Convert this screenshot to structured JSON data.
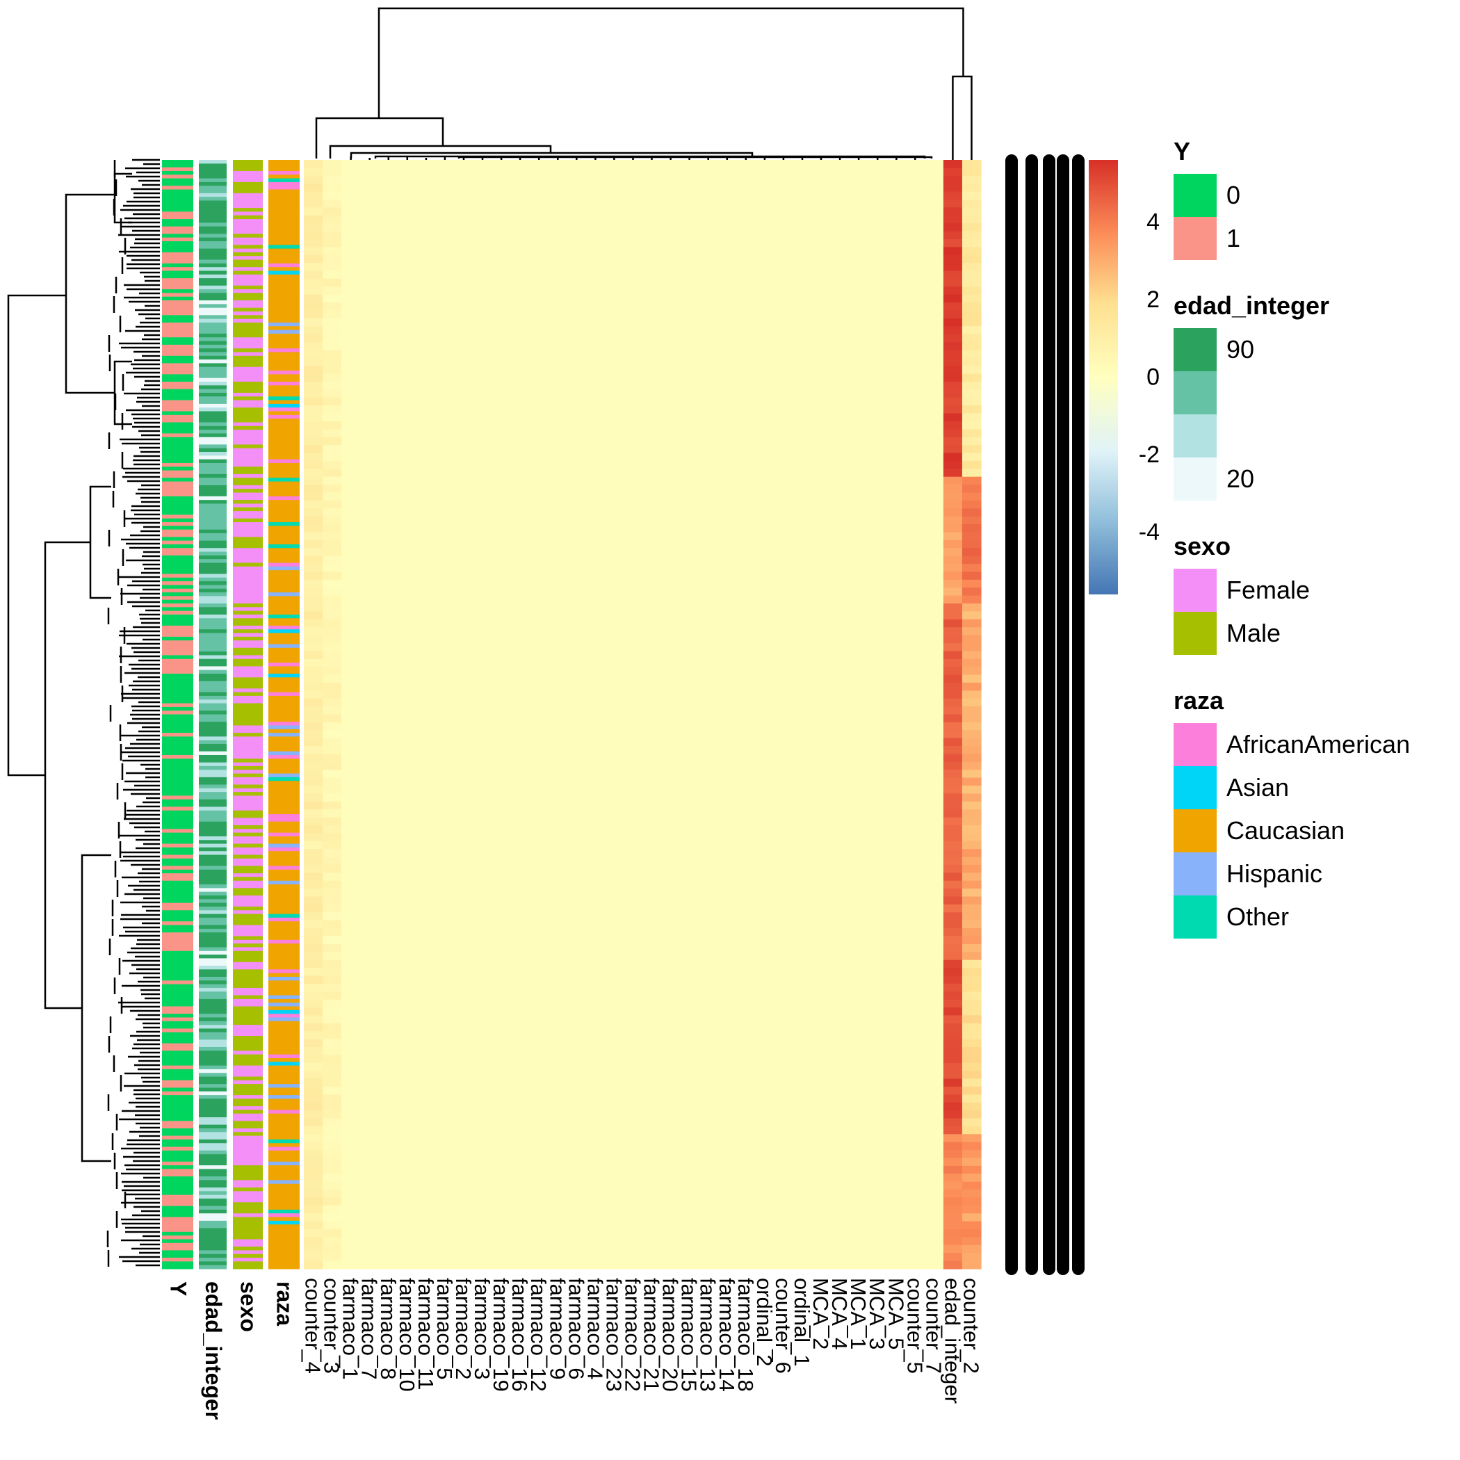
{
  "chart_data": {
    "type": "heatmap",
    "title": "",
    "colorbar": {
      "ticks": [
        "4",
        "2",
        "0",
        "-2",
        "-4"
      ],
      "tick_values": [
        4,
        2,
        0,
        -2,
        -4
      ],
      "range": [
        -5.6,
        5.6
      ],
      "colors": [
        "#4575b4",
        "#91bfdb",
        "#e0f3f8",
        "#ffffbf",
        "#fee090",
        "#fc8d59",
        "#d73027"
      ]
    },
    "columns": [
      "counter_4",
      "counter_3",
      "farmaco_1",
      "farmaco_7",
      "farmaco_8",
      "farmaco_10",
      "farmaco_11",
      "farmaco_5",
      "farmaco_2",
      "farmaco_3",
      "farmaco_19",
      "farmaco_16",
      "farmaco_12",
      "farmaco_9",
      "farmaco_6",
      "farmaco_4",
      "farmaco_23",
      "farmaco_22",
      "farmaco_21",
      "farmaco_20",
      "farmaco_15",
      "farmaco_13",
      "farmaco_14",
      "farmaco_18",
      "ordinal_2",
      "counter_6",
      "ordinal_1",
      "MCA_2",
      "MCA_4",
      "MCA_1",
      "MCA_3",
      "MCA_5",
      "counter_5",
      "counter_7",
      "edad_integer",
      "counter_2"
    ],
    "column_mean_values": [
      0.8,
      0.35,
      0.15,
      0.1,
      0.1,
      0.1,
      0.1,
      0.1,
      0.1,
      0.1,
      0.1,
      0.1,
      0.1,
      0.1,
      0.1,
      0.1,
      0.1,
      0.1,
      0.1,
      0.1,
      0.1,
      0.1,
      0.1,
      0.1,
      0.1,
      0.1,
      0.1,
      0.1,
      0.1,
      0.1,
      0.1,
      0.1,
      0.1,
      0.1,
      4.5,
      2.6
    ],
    "row_groups_edad_integer_col": [
      {
        "rows": "top",
        "value": 5.3
      },
      {
        "rows": "upper-middle",
        "value": 3.2
      },
      {
        "rows": "middle",
        "value": 4.6
      },
      {
        "rows": "lower-middle",
        "value": 5.1
      },
      {
        "rows": "bottom",
        "value": 3.8
      }
    ],
    "row_groups_counter_2_col": [
      {
        "rows": "top",
        "value": 1.2
      },
      {
        "rows": "upper-middle",
        "value": 4.2
      },
      {
        "rows": "middle",
        "value": 3.0
      },
      {
        "rows": "lower-middle",
        "value": 1.8
      },
      {
        "rows": "bottom",
        "value": 3.4
      }
    ],
    "row_annotations": [
      "Y",
      "edad_integer",
      "sexo",
      "raza"
    ],
    "legends": [
      {
        "title": "Y",
        "entries": [
          {
            "label": "0",
            "color": "#00d65f"
          },
          {
            "label": "1",
            "color": "#fb9488"
          }
        ]
      },
      {
        "title": "edad_integer",
        "labels": [
          "90",
          "20"
        ],
        "colors": [
          "#2ca25f",
          "#66c2a4",
          "#b2e2e2",
          "#edf8fb"
        ]
      },
      {
        "title": "sexo",
        "entries": [
          {
            "label": "Female",
            "color": "#f38ff6"
          },
          {
            "label": "Male",
            "color": "#a6bf00"
          }
        ]
      },
      {
        "title": "raza",
        "entries": [
          {
            "label": "AfricanAmerican",
            "color": "#fc7fdb"
          },
          {
            "label": "Asian",
            "color": "#00d4f7"
          },
          {
            "label": "Caucasian",
            "color": "#f0a400"
          },
          {
            "label": "Hispanic",
            "color": "#88b2f9"
          },
          {
            "label": "Other",
            "color": "#00dab0"
          }
        ]
      }
    ]
  }
}
